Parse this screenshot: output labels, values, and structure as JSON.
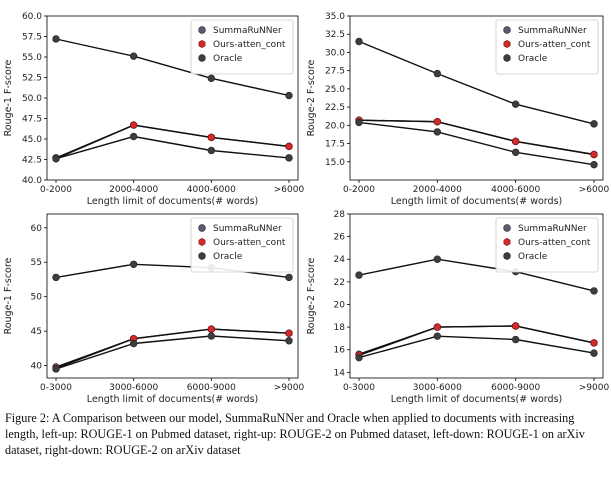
{
  "caption": "Figure 2: A Comparison between our model, SummaRuNNer and Oracle when applied to documents with increasing length, left-up: ROUGE-1 on Pubmed dataset, right-up: ROUGE-2 on Pubmed dataset, left-down: ROUGE-1 on arXiv dataset, right-down: ROUGE-2 on arXiv dataset",
  "colors": {
    "line": "#111111",
    "summarunner_marker": "#5b5b78",
    "ours_marker": "#d42a2a",
    "oracle_marker": "#3d3d3d",
    "legend_border": "#cccccc"
  },
  "chart_data": [
    {
      "type": "line",
      "title": "",
      "xlabel": "Length limit of documents(# words)",
      "ylabel": "Rouge-1 F-score",
      "categories": [
        "0-2000",
        "2000-4000",
        "4000-6000",
        ">6000"
      ],
      "ylim": [
        40.0,
        60.0
      ],
      "yticks": [
        "40.0",
        "42.5",
        "45.0",
        "47.5",
        "50.0",
        "52.5",
        "55.0",
        "57.5",
        "60.0"
      ],
      "legend_position": "top-right",
      "series": [
        {
          "name": "SummaRuNNer",
          "values": [
            42.7,
            46.7,
            45.2,
            44.1
          ]
        },
        {
          "name": "Ours-atten_cont",
          "values": [
            42.6,
            46.7,
            45.2,
            44.1
          ]
        },
        {
          "name": "Oracle",
          "values": [
            57.2,
            55.1,
            52.4,
            50.3
          ]
        },
        {
          "name": "",
          "values": [
            42.6,
            45.3,
            43.6,
            42.7
          ]
        }
      ]
    },
    {
      "type": "line",
      "title": "",
      "xlabel": "Length limit of documents(# words)",
      "ylabel": "Rouge-2 F-score",
      "categories": [
        "0-2000",
        "2000-4000",
        "4000-6000",
        ">6000"
      ],
      "ylim": [
        12.5,
        35.0
      ],
      "yticks": [
        "15.0",
        "17.5",
        "20.0",
        "22.5",
        "25.0",
        "27.5",
        "30.0",
        "32.5",
        "35.0"
      ],
      "legend_position": "top-right",
      "series": [
        {
          "name": "SummaRuNNer",
          "values": [
            20.7,
            20.5,
            17.8,
            16.0
          ]
        },
        {
          "name": "Ours-atten_cont",
          "values": [
            20.7,
            20.5,
            17.8,
            16.0
          ]
        },
        {
          "name": "Oracle",
          "values": [
            31.5,
            27.1,
            22.9,
            20.2
          ]
        },
        {
          "name": "",
          "values": [
            20.4,
            19.1,
            16.3,
            14.6
          ]
        }
      ]
    },
    {
      "type": "line",
      "title": "",
      "xlabel": "Length limit of documents(# words)",
      "ylabel": "Rouge-1 F-score",
      "categories": [
        "0-3000",
        "3000-6000",
        "6000-9000",
        ">9000"
      ],
      "ylim": [
        38.2,
        62.0
      ],
      "yticks": [
        "40",
        "45",
        "50",
        "55",
        "60"
      ],
      "legend_position": "top-right",
      "series": [
        {
          "name": "SummaRuNNer",
          "values": [
            39.8,
            43.9,
            45.3,
            44.7
          ]
        },
        {
          "name": "Ours-atten_cont",
          "values": [
            39.6,
            43.9,
            45.3,
            44.7
          ]
        },
        {
          "name": "Oracle",
          "values": [
            52.8,
            54.7,
            54.2,
            52.8
          ]
        },
        {
          "name": "",
          "values": [
            39.5,
            43.2,
            44.3,
            43.6
          ]
        }
      ]
    },
    {
      "type": "line",
      "title": "",
      "xlabel": "Length limit of documents(# words)",
      "ylabel": "Rouge-2 F-score",
      "categories": [
        "0-3000",
        "3000-6000",
        "6000-9000",
        ">9000"
      ],
      "ylim": [
        13.5,
        28.0
      ],
      "yticks": [
        "14",
        "16",
        "18",
        "20",
        "22",
        "24",
        "26",
        "28"
      ],
      "legend_position": "top-right",
      "series": [
        {
          "name": "SummaRuNNer",
          "values": [
            15.6,
            18.0,
            18.1,
            16.6
          ]
        },
        {
          "name": "Ours-atten_cont",
          "values": [
            15.5,
            18.0,
            18.1,
            16.6
          ]
        },
        {
          "name": "Oracle",
          "values": [
            22.6,
            24.0,
            22.9,
            21.2
          ]
        },
        {
          "name": "",
          "values": [
            15.3,
            17.2,
            16.9,
            15.7
          ]
        }
      ]
    }
  ]
}
